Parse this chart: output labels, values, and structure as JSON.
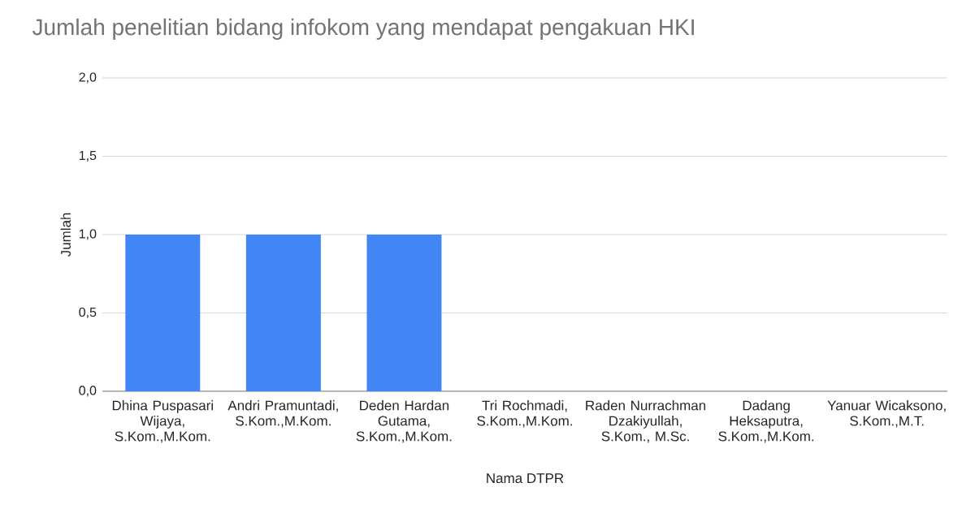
{
  "chart_data": {
    "type": "bar",
    "title": "Jumlah penelitian bidang infokom yang mendapat pengakuan HKI",
    "xlabel": "Nama DTPR",
    "ylabel": "Jumlah",
    "categories": [
      "Dhina Puspasari Wijaya, S.Kom.,M.Kom.",
      "Andri Pramuntadi, S.Kom.,M.Kom.",
      "Deden Hardan Gutama, S.Kom.,M.Kom.",
      "Tri Rochmadi, S.Kom.,M.Kom.",
      "Raden Nurrachman Dzakiyullah, S.Kom., M.Sc.",
      "Dadang Heksaputra, S.Kom.,M.Kom.",
      "Yanuar Wicaksono, S.Kom.,M.T."
    ],
    "values": [
      1,
      1,
      1,
      0,
      0,
      0,
      0
    ],
    "color": "#4285f4",
    "ylim": [
      0,
      2
    ],
    "yticks": [
      {
        "value": 0,
        "label": "0,0"
      },
      {
        "value": 0.5,
        "label": "0,5"
      },
      {
        "value": 1,
        "label": "1,0"
      },
      {
        "value": 1.5,
        "label": "1,5"
      },
      {
        "value": 2,
        "label": "2,0"
      }
    ],
    "grid": "y"
  }
}
